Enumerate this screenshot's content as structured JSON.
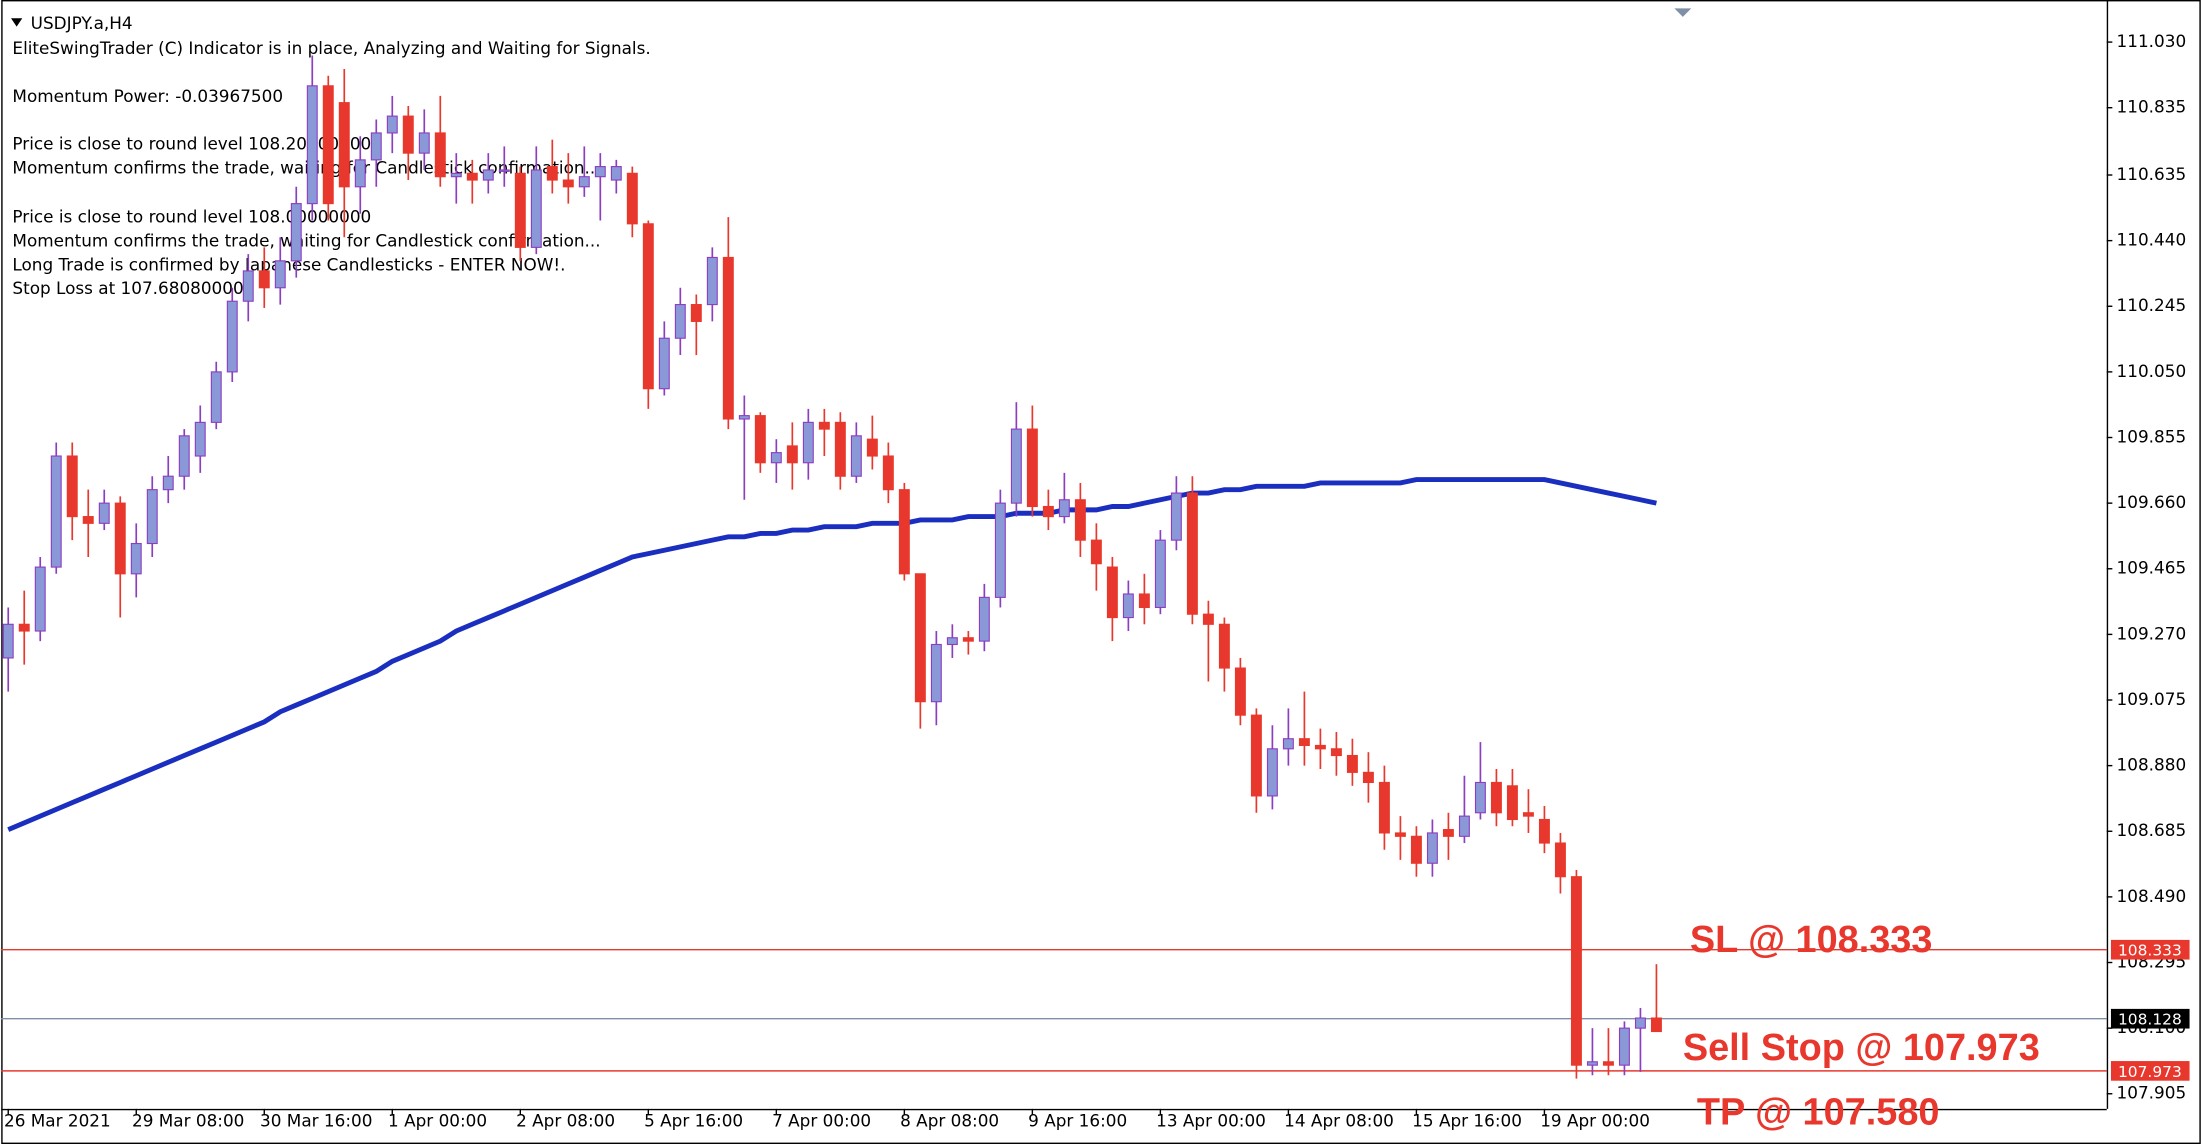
{
  "chart_data": {
    "type": "candlestick",
    "title": "USDJPY.a,H4",
    "indicator_text": [
      "EliteSwingTrader (C) Indicator is in place, Analyzing and Waiting for Signals.",
      "Momentum Power: -0.03967500",
      "Price is close to round level 108.20000000",
      "Momentum confirms the trade, waiting for Candlestick confirmation...",
      "Price is close to round level 108.00000000",
      "Momentum confirms the trade, waiting for Candlestick confirmation...",
      "Long Trade is confirmed by Japanese Candlesticks - ENTER NOW!.",
      "Stop Loss at 107.68080000"
    ],
    "categories": [
      "26 Mar 2021",
      null,
      null,
      null,
      null,
      null,
      null,
      null,
      "29 Mar 08:00",
      null,
      null,
      null,
      null,
      null,
      null,
      null,
      "30 Mar 16:00",
      null,
      null,
      null,
      null,
      null,
      null,
      null,
      "1 Apr 00:00",
      null,
      null,
      null,
      null,
      null,
      null,
      null,
      "2 Apr 08:00",
      null,
      null,
      null,
      null,
      null,
      null,
      null,
      "5 Apr 16:00",
      null,
      null,
      null,
      null,
      null,
      null,
      null,
      "7 Apr 00:00",
      null,
      null,
      null,
      null,
      null,
      null,
      null,
      "8 Apr 08:00",
      null,
      null,
      null,
      null,
      null,
      null,
      null,
      "9 Apr 16:00",
      null,
      null,
      null,
      null,
      null,
      null,
      null,
      "13 Apr 00:00",
      null,
      null,
      null,
      null,
      null,
      null,
      null,
      "14 Apr 08:00",
      null,
      null,
      null,
      null,
      null,
      null,
      null,
      "15 Apr 16:00",
      null,
      null,
      null,
      null,
      null,
      null,
      null,
      "19 Apr 00:00",
      null,
      null,
      null,
      null,
      null,
      null,
      null
    ],
    "open": [
      109.2,
      109.3,
      109.28,
      109.47,
      109.8,
      109.62,
      109.6,
      109.66,
      109.45,
      109.54,
      109.7,
      109.74,
      109.8,
      109.9,
      110.05,
      110.26,
      110.35,
      110.3,
      110.38,
      110.55,
      110.9,
      110.85,
      110.6,
      110.68,
      110.76,
      110.81,
      110.7,
      110.76,
      110.63,
      110.64,
      110.62,
      110.65,
      110.64,
      110.42,
      110.66,
      110.62,
      110.6,
      110.63,
      110.62,
      110.64,
      110.49,
      110.0,
      110.15,
      110.25,
      110.25,
      110.39,
      109.91,
      109.92,
      109.78,
      109.83,
      109.78,
      109.9,
      109.9,
      109.74,
      109.85,
      109.8,
      109.7,
      109.45,
      109.07,
      109.24,
      109.26,
      109.25,
      109.38,
      109.66,
      109.88,
      109.65,
      109.62,
      109.67,
      109.55,
      109.47,
      109.32,
      109.39,
      109.35,
      109.55,
      109.69,
      109.33,
      109.3,
      109.17,
      109.03,
      108.79,
      108.93,
      108.96,
      108.94,
      108.93,
      108.91,
      108.86,
      108.83,
      108.68,
      108.67,
      108.59,
      108.69,
      108.67,
      108.74,
      108.83,
      108.82,
      108.74,
      108.72,
      108.65,
      108.55,
      107.99,
      108.0,
      107.99,
      108.1,
      108.13
    ],
    "high": [
      109.35,
      109.4,
      109.5,
      109.84,
      109.84,
      109.7,
      109.7,
      109.68,
      109.6,
      109.74,
      109.8,
      109.88,
      109.95,
      110.08,
      110.3,
      110.4,
      110.42,
      110.45,
      110.6,
      110.99,
      110.93,
      110.95,
      110.75,
      110.8,
      110.87,
      110.84,
      110.83,
      110.87,
      110.7,
      110.68,
      110.7,
      110.72,
      110.66,
      110.72,
      110.74,
      110.7,
      110.72,
      110.7,
      110.68,
      110.66,
      110.5,
      110.2,
      110.3,
      110.28,
      110.42,
      110.51,
      109.98,
      109.93,
      109.85,
      109.9,
      109.94,
      109.94,
      109.93,
      109.9,
      109.92,
      109.84,
      109.72,
      109.45,
      109.28,
      109.3,
      109.28,
      109.42,
      109.7,
      109.96,
      109.95,
      109.7,
      109.75,
      109.72,
      109.6,
      109.5,
      109.43,
      109.45,
      109.58,
      109.74,
      109.74,
      109.37,
      109.32,
      109.2,
      109.05,
      109.0,
      109.05,
      109.1,
      108.99,
      108.98,
      108.96,
      108.92,
      108.88,
      108.73,
      108.7,
      108.72,
      108.74,
      108.85,
      108.95,
      108.87,
      108.87,
      108.81,
      108.76,
      108.68,
      108.57,
      108.1,
      108.1,
      108.12,
      108.16,
      108.29
    ],
    "low": [
      109.1,
      109.18,
      109.25,
      109.45,
      109.55,
      109.5,
      109.58,
      109.32,
      109.38,
      109.5,
      109.66,
      109.7,
      109.75,
      109.88,
      110.02,
      110.2,
      110.24,
      110.25,
      110.33,
      110.5,
      110.5,
      110.45,
      110.52,
      110.6,
      110.7,
      110.62,
      110.65,
      110.6,
      110.55,
      110.55,
      110.58,
      110.6,
      110.38,
      110.4,
      110.58,
      110.55,
      110.57,
      110.5,
      110.58,
      110.45,
      109.94,
      109.98,
      110.1,
      110.1,
      110.2,
      109.88,
      109.67,
      109.75,
      109.72,
      109.7,
      109.73,
      109.8,
      109.7,
      109.72,
      109.76,
      109.66,
      109.43,
      108.99,
      109.0,
      109.2,
      109.21,
      109.22,
      109.35,
      109.62,
      109.62,
      109.58,
      109.6,
      109.5,
      109.4,
      109.25,
      109.28,
      109.3,
      109.33,
      109.52,
      109.3,
      109.13,
      109.1,
      109.0,
      108.74,
      108.75,
      108.88,
      108.88,
      108.87,
      108.85,
      108.82,
      108.77,
      108.63,
      108.6,
      108.55,
      108.55,
      108.6,
      108.65,
      108.72,
      108.7,
      108.7,
      108.68,
      108.62,
      108.5,
      107.95,
      107.96,
      107.96,
      107.96,
      107.97,
      108.09
    ],
    "close": [
      109.3,
      109.28,
      109.47,
      109.8,
      109.62,
      109.6,
      109.66,
      109.45,
      109.54,
      109.7,
      109.74,
      109.86,
      109.9,
      110.05,
      110.26,
      110.35,
      110.3,
      110.38,
      110.55,
      110.9,
      110.55,
      110.6,
      110.68,
      110.76,
      110.81,
      110.7,
      110.76,
      110.63,
      110.64,
      110.62,
      110.65,
      110.65,
      110.42,
      110.65,
      110.62,
      110.6,
      110.63,
      110.66,
      110.66,
      110.49,
      110.0,
      110.15,
      110.25,
      110.2,
      110.39,
      109.91,
      109.92,
      109.78,
      109.81,
      109.78,
      109.9,
      109.88,
      109.74,
      109.86,
      109.8,
      109.7,
      109.45,
      109.07,
      109.24,
      109.26,
      109.25,
      109.38,
      109.66,
      109.88,
      109.65,
      109.62,
      109.67,
      109.55,
      109.48,
      109.32,
      109.39,
      109.35,
      109.55,
      109.69,
      109.33,
      109.3,
      109.17,
      109.03,
      108.79,
      108.93,
      108.96,
      108.94,
      108.93,
      108.91,
      108.86,
      108.83,
      108.68,
      108.67,
      108.59,
      108.68,
      108.67,
      108.73,
      108.83,
      108.74,
      108.72,
      108.73,
      108.65,
      108.55,
      107.99,
      108.0,
      107.99,
      108.1,
      108.13,
      108.09
    ],
    "up_color": "#8a98d8",
    "up_edge": "#8b3fc0",
    "down_color": "#e8382d",
    "ma": {
      "color": "#1a2fbf",
      "values": [
        108.69,
        108.71,
        108.73,
        108.75,
        108.77,
        108.79,
        108.81,
        108.83,
        108.85,
        108.87,
        108.89,
        108.91,
        108.93,
        108.95,
        108.97,
        108.99,
        109.01,
        109.04,
        109.06,
        109.08,
        109.1,
        109.12,
        109.14,
        109.16,
        109.19,
        109.21,
        109.23,
        109.25,
        109.28,
        109.3,
        109.32,
        109.34,
        109.36,
        109.38,
        109.4,
        109.42,
        109.44,
        109.46,
        109.48,
        109.5,
        109.51,
        109.52,
        109.53,
        109.54,
        109.55,
        109.56,
        109.56,
        109.57,
        109.57,
        109.58,
        109.58,
        109.59,
        109.59,
        109.59,
        109.6,
        109.6,
        109.6,
        109.61,
        109.61,
        109.61,
        109.62,
        109.62,
        109.62,
        109.63,
        109.63,
        109.63,
        109.64,
        109.64,
        109.64,
        109.65,
        109.65,
        109.66,
        109.67,
        109.68,
        109.69,
        109.69,
        109.7,
        109.7,
        109.71,
        109.71,
        109.71,
        109.71,
        109.72,
        109.72,
        109.72,
        109.72,
        109.72,
        109.72,
        109.73,
        109.73,
        109.73,
        109.73,
        109.73,
        109.73,
        109.73,
        109.73,
        109.73,
        109.72,
        109.71,
        109.7,
        109.69,
        109.68,
        109.67,
        109.66
      ]
    },
    "ylim": [
      107.86,
      111.13
    ],
    "yticks": [
      {
        "value": 111.03,
        "label": "111.030"
      },
      110.835,
      110.635,
      {
        "value": 110.44,
        "label": "110.440"
      },
      110.245,
      {
        "value": 110.05,
        "label": "110.050"
      },
      109.855,
      {
        "value": 109.66,
        "label": "109.660"
      },
      109.465,
      {
        "value": 109.27,
        "label": "109.270"
      },
      109.075,
      {
        "value": 108.88,
        "label": "108.880"
      },
      108.685,
      {
        "value": 108.49,
        "label": "108.490"
      },
      108.295,
      {
        "value": 108.1,
        "label": "108.100"
      },
      107.905
    ],
    "levels": [
      {
        "value": 108.333,
        "color": "#e8382d"
      },
      {
        "value": 108.128,
        "color": "#7f8fa6"
      },
      {
        "value": 107.973,
        "color": "#e8382d"
      }
    ],
    "annotations": [
      "SL @ 108.333",
      "Sell Stop @ 107.973",
      "TP @ 107.580"
    ]
  }
}
